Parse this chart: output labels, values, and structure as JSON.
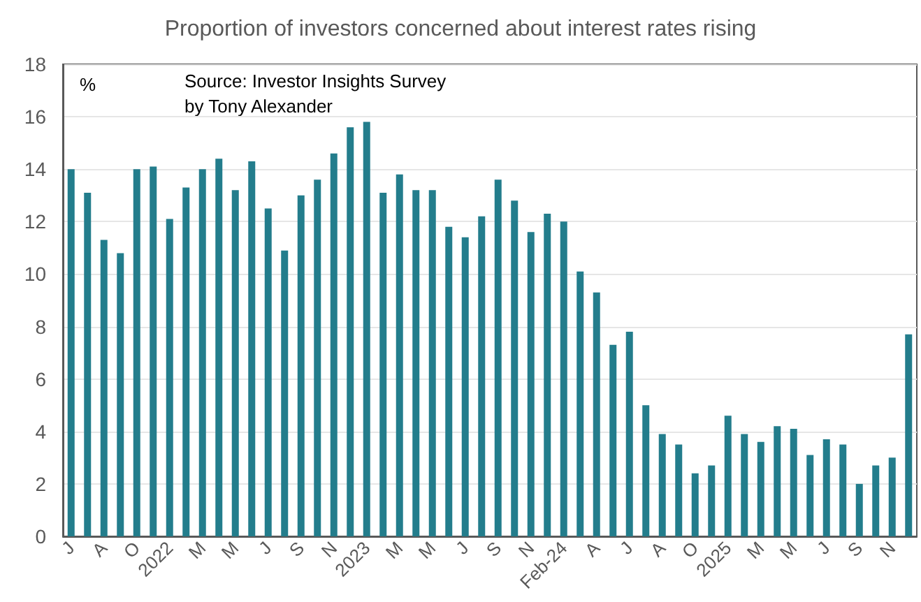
{
  "chart_data": {
    "type": "bar",
    "title": "Proportion of investors concerned about interest rates rising",
    "ylabel": "%",
    "annotations": [
      "Source: Investor Insights Survey by Tony Alexander"
    ],
    "categories": [
      "J",
      null,
      "A",
      null,
      "O",
      null,
      "2022",
      null,
      "M",
      null,
      "M",
      null,
      "J",
      null,
      "S",
      null,
      "N",
      null,
      "2023",
      null,
      "M",
      null,
      "M",
      null,
      "J",
      null,
      "S",
      null,
      "N",
      null,
      "Feb-24",
      null,
      "A",
      null,
      "J",
      null,
      "A",
      null,
      "O",
      null,
      "2025",
      null,
      "M",
      null,
      "M",
      null,
      "J",
      null,
      "S",
      null,
      "N",
      null
    ],
    "values": [
      14.0,
      13.1,
      11.3,
      10.8,
      14.0,
      14.1,
      12.1,
      13.3,
      14.0,
      14.4,
      13.2,
      14.3,
      12.5,
      10.9,
      13.0,
      13.6,
      14.6,
      15.6,
      15.8,
      13.1,
      13.8,
      13.2,
      13.2,
      11.8,
      11.4,
      12.2,
      13.6,
      12.8,
      11.6,
      12.3,
      12.0,
      10.1,
      9.3,
      7.3,
      7.8,
      5.0,
      3.9,
      3.5,
      2.4,
      2.7,
      4.6,
      3.9,
      3.6,
      4.2,
      4.1,
      3.1,
      3.7,
      3.5,
      2.0,
      2.7,
      3.0,
      7.7
    ],
    "color": "#237d8c",
    "ylim": [
      0,
      18
    ],
    "yticks": [
      0,
      2,
      4,
      6,
      8,
      10,
      12,
      14,
      16,
      18
    ],
    "grid": "y"
  }
}
